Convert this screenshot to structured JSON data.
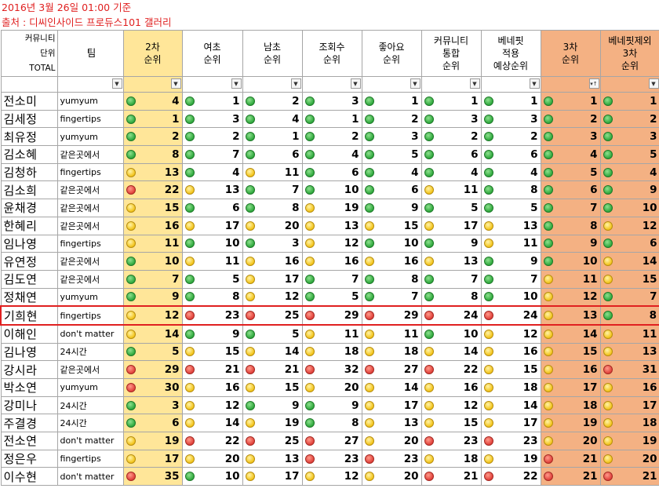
{
  "title_line": "2016년 3월 26일 01:00 기준",
  "source_line": "출처 : 디씨인사이드 프로듀스101 갤러리",
  "header": {
    "first_col": [
      "커뮤니티",
      "단위",
      "TOTAL"
    ],
    "team": "팀",
    "rank_cols": [
      [
        "2차",
        "순위"
      ],
      [
        "여초",
        "순위"
      ],
      [
        "남초",
        "순위"
      ],
      [
        "조회수",
        "순위"
      ],
      [
        "좋아요",
        "순위"
      ],
      [
        "커뮤니티",
        "통합",
        "순위"
      ],
      [
        "베네핏",
        "적용",
        "예상순위"
      ],
      [
        "3차",
        "순위"
      ],
      [
        "베네핏제외",
        "3차",
        "순위"
      ]
    ]
  },
  "filter_icon": "dropdown-arrow",
  "sorted_filter_icon": "sort-ascending",
  "highlighted_row": "기희현",
  "colors": {
    "green": "#2ea83c",
    "yellow": "#f2c318",
    "red": "#e0403a",
    "highlight": "#e02020",
    "col_yellow": "#ffe699",
    "col_orange": "#f4b183"
  },
  "rows": [
    {
      "name": "전소미",
      "team": "yumyum",
      "ranks": [
        4,
        1,
        2,
        3,
        1,
        1,
        1,
        1,
        1
      ]
    },
    {
      "name": "김세정",
      "team": "fingertips",
      "ranks": [
        1,
        3,
        4,
        1,
        2,
        3,
        3,
        2,
        2
      ]
    },
    {
      "name": "최유정",
      "team": "yumyum",
      "ranks": [
        2,
        2,
        1,
        2,
        3,
        2,
        2,
        3,
        3
      ]
    },
    {
      "name": "김소혜",
      "team": "같은곳에서",
      "ranks": [
        8,
        7,
        6,
        4,
        5,
        6,
        6,
        4,
        5
      ]
    },
    {
      "name": "김청하",
      "team": "fingertips",
      "ranks": [
        13,
        4,
        11,
        6,
        4,
        4,
        4,
        5,
        4
      ]
    },
    {
      "name": "김소희",
      "team": "같은곳에서",
      "ranks": [
        22,
        13,
        7,
        10,
        6,
        11,
        8,
        6,
        9
      ]
    },
    {
      "name": "윤채경",
      "team": "같은곳에서",
      "ranks": [
        15,
        6,
        8,
        19,
        9,
        5,
        5,
        7,
        10
      ]
    },
    {
      "name": "한혜리",
      "team": "같은곳에서",
      "ranks": [
        16,
        17,
        20,
        13,
        15,
        17,
        13,
        8,
        12
      ]
    },
    {
      "name": "임나영",
      "team": "fingertips",
      "ranks": [
        11,
        10,
        3,
        12,
        10,
        9,
        11,
        9,
        6
      ]
    },
    {
      "name": "유연정",
      "team": "같은곳에서",
      "ranks": [
        10,
        11,
        16,
        16,
        16,
        13,
        9,
        10,
        14
      ]
    },
    {
      "name": "김도연",
      "team": "같은곳에서",
      "ranks": [
        7,
        5,
        17,
        7,
        8,
        7,
        7,
        11,
        15
      ]
    },
    {
      "name": "정채연",
      "team": "yumyum",
      "ranks": [
        9,
        8,
        12,
        5,
        7,
        8,
        10,
        12,
        7
      ]
    },
    {
      "name": "기희현",
      "team": "fingertips",
      "ranks": [
        12,
        23,
        25,
        29,
        29,
        24,
        24,
        13,
        8
      ]
    },
    {
      "name": "이해인",
      "team": "don't matter",
      "ranks": [
        14,
        9,
        5,
        11,
        11,
        10,
        12,
        14,
        11
      ]
    },
    {
      "name": "김나영",
      "team": "24시간",
      "ranks": [
        5,
        15,
        14,
        18,
        18,
        14,
        16,
        15,
        13
      ]
    },
    {
      "name": "강시라",
      "team": "같은곳에서",
      "ranks": [
        29,
        21,
        21,
        32,
        27,
        22,
        15,
        16,
        31
      ]
    },
    {
      "name": "박소연",
      "team": "yumyum",
      "ranks": [
        30,
        16,
        15,
        20,
        14,
        16,
        18,
        17,
        16
      ]
    },
    {
      "name": "강미나",
      "team": "24시간",
      "ranks": [
        3,
        12,
        9,
        9,
        17,
        12,
        14,
        18,
        17
      ]
    },
    {
      "name": "주결경",
      "team": "24시간",
      "ranks": [
        6,
        14,
        19,
        8,
        13,
        15,
        17,
        19,
        18
      ]
    },
    {
      "name": "전소연",
      "team": "don't matter",
      "ranks": [
        19,
        22,
        25,
        27,
        20,
        23,
        23,
        20,
        19
      ]
    },
    {
      "name": "정은우",
      "team": "fingertips",
      "ranks": [
        17,
        20,
        13,
        23,
        23,
        18,
        19,
        21,
        20
      ]
    },
    {
      "name": "이수현",
      "team": "don't matter",
      "ranks": [
        35,
        10,
        17,
        12,
        20,
        21,
        22,
        21,
        21
      ]
    }
  ]
}
